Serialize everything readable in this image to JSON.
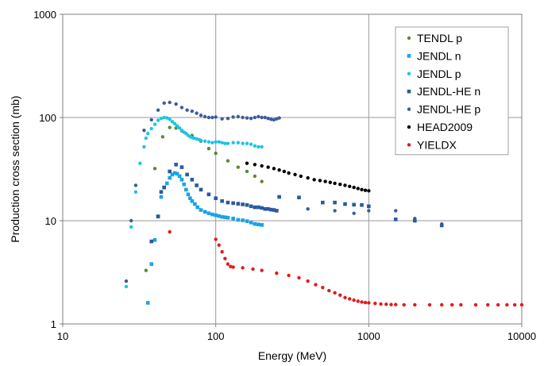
{
  "chart_data": {
    "type": "scatter",
    "xlabel": "Energy (MeV)",
    "ylabel": "Production cross section (mb)",
    "xscale": "log",
    "yscale": "log",
    "xlim": [
      10,
      10000
    ],
    "ylim": [
      1,
      1000
    ],
    "xticks": [
      "10",
      "100",
      "1000",
      "10000"
    ],
    "yticks": [
      "1",
      "10",
      "100",
      "1000"
    ],
    "grid": "major",
    "legend_position": "top-right",
    "series": [
      {
        "name": "TENDL p",
        "color": "#5b8a32",
        "marker": "dot",
        "points": [
          [
            35,
            3.3
          ],
          [
            40,
            32
          ],
          [
            45,
            65
          ],
          [
            50,
            80
          ],
          [
            55,
            79
          ],
          [
            60,
            74
          ],
          [
            70,
            67
          ],
          [
            80,
            59
          ],
          [
            90,
            50
          ],
          [
            100,
            45
          ],
          [
            120,
            38
          ],
          [
            140,
            33
          ],
          [
            160,
            30
          ],
          [
            180,
            27
          ],
          [
            200,
            24
          ]
        ]
      },
      {
        "name": "JENDL n",
        "color": "#1aa3e8",
        "marker": "square",
        "points": [
          [
            36,
            1.6
          ],
          [
            38,
            3.8
          ],
          [
            40,
            6.5
          ],
          [
            42,
            11
          ],
          [
            44,
            17
          ],
          [
            46,
            21
          ],
          [
            48,
            23
          ],
          [
            50,
            26
          ],
          [
            52,
            28
          ],
          [
            54,
            29
          ],
          [
            56,
            28.5
          ],
          [
            58,
            27
          ],
          [
            60,
            25
          ],
          [
            62,
            22.5
          ],
          [
            64,
            20
          ],
          [
            66,
            18
          ],
          [
            68,
            16.5
          ],
          [
            70,
            15.5
          ],
          [
            73,
            14.5
          ],
          [
            76,
            13.5
          ],
          [
            80,
            12.7
          ],
          [
            85,
            12.2
          ],
          [
            90,
            11.8
          ],
          [
            95,
            11.5
          ],
          [
            100,
            11.3
          ],
          [
            105,
            11.1
          ],
          [
            110,
            10.9
          ],
          [
            115,
            10.8
          ],
          [
            120,
            10.7
          ],
          [
            130,
            10.5
          ],
          [
            140,
            10.2
          ],
          [
            150,
            10.1
          ],
          [
            160,
            9.9
          ],
          [
            170,
            9.6
          ],
          [
            180,
            9.3
          ],
          [
            190,
            9.2
          ],
          [
            200,
            9.1
          ]
        ]
      },
      {
        "name": "JENDL p",
        "color": "#1cc4e6",
        "marker": "dot",
        "points": [
          [
            26,
            2.3
          ],
          [
            28,
            8.7
          ],
          [
            30,
            19
          ],
          [
            32,
            36
          ],
          [
            34,
            52
          ],
          [
            35,
            63
          ],
          [
            36,
            70
          ],
          [
            38,
            78
          ],
          [
            40,
            86
          ],
          [
            42,
            94
          ],
          [
            44,
            98
          ],
          [
            46,
            100
          ],
          [
            48,
            99
          ],
          [
            50,
            96
          ],
          [
            52,
            91
          ],
          [
            54,
            87
          ],
          [
            56,
            83
          ],
          [
            58,
            79
          ],
          [
            60,
            75
          ],
          [
            62,
            72
          ],
          [
            64,
            70
          ],
          [
            66,
            67
          ],
          [
            68,
            65
          ],
          [
            70,
            64
          ],
          [
            72,
            63
          ],
          [
            75,
            62
          ],
          [
            78,
            61
          ],
          [
            80,
            60
          ],
          [
            85,
            59
          ],
          [
            90,
            58
          ],
          [
            95,
            57
          ],
          [
            100,
            58
          ],
          [
            105,
            58
          ],
          [
            110,
            57
          ],
          [
            115,
            56
          ],
          [
            120,
            56
          ],
          [
            130,
            57
          ],
          [
            140,
            57
          ],
          [
            150,
            56
          ],
          [
            160,
            56
          ],
          [
            170,
            55
          ],
          [
            180,
            53
          ],
          [
            190,
            52
          ],
          [
            200,
            52
          ]
        ]
      },
      {
        "name": "JENDL-HE n",
        "color": "#2a5a9e",
        "marker": "square",
        "points": [
          [
            38,
            6.3
          ],
          [
            42,
            11
          ],
          [
            44,
            19
          ],
          [
            46,
            21
          ],
          [
            50,
            30
          ],
          [
            55,
            35
          ],
          [
            60,
            33
          ],
          [
            65,
            28
          ],
          [
            70,
            25
          ],
          [
            75,
            22
          ],
          [
            80,
            20
          ],
          [
            90,
            18
          ],
          [
            100,
            16.5
          ],
          [
            110,
            15.5
          ],
          [
            120,
            15
          ],
          [
            130,
            14.8
          ],
          [
            140,
            14.6
          ],
          [
            150,
            14.4
          ],
          [
            160,
            14.2
          ],
          [
            170,
            13.8
          ],
          [
            180,
            13.5
          ],
          [
            190,
            13.5
          ],
          [
            200,
            13.3
          ],
          [
            210,
            13
          ],
          [
            220,
            13
          ],
          [
            230,
            12.8
          ],
          [
            240,
            12.7
          ],
          [
            250,
            12.5
          ],
          [
            260,
            17
          ],
          [
            350,
            16.8
          ],
          [
            500,
            15
          ],
          [
            600,
            15
          ],
          [
            700,
            14.5
          ],
          [
            800,
            14.3
          ],
          [
            900,
            14.2
          ],
          [
            1000,
            13.8
          ],
          [
            1500,
            10.3
          ],
          [
            2000,
            10
          ],
          [
            3000,
            9
          ]
        ]
      },
      {
        "name": "JENDL-HE p",
        "color": "#3d5c9a",
        "marker": "dot",
        "points": [
          [
            26,
            2.6
          ],
          [
            28,
            10
          ],
          [
            30,
            22
          ],
          [
            34,
            75
          ],
          [
            38,
            95
          ],
          [
            42,
            118
          ],
          [
            46,
            138
          ],
          [
            50,
            140
          ],
          [
            55,
            135
          ],
          [
            60,
            125
          ],
          [
            65,
            118
          ],
          [
            70,
            115
          ],
          [
            75,
            110
          ],
          [
            80,
            105
          ],
          [
            85,
            102
          ],
          [
            90,
            100
          ],
          [
            95,
            100
          ],
          [
            100,
            101
          ],
          [
            110,
            97
          ],
          [
            120,
            98
          ],
          [
            130,
            101
          ],
          [
            140,
            102
          ],
          [
            150,
            100
          ],
          [
            160,
            99
          ],
          [
            170,
            98
          ],
          [
            180,
            100
          ],
          [
            190,
            102
          ],
          [
            200,
            100
          ],
          [
            210,
            100
          ],
          [
            220,
            98
          ],
          [
            230,
            96
          ],
          [
            240,
            95
          ],
          [
            250,
            97
          ],
          [
            260,
            99
          ],
          [
            400,
            13
          ],
          [
            600,
            12.5
          ],
          [
            800,
            11.8
          ],
          [
            1000,
            12.5
          ],
          [
            1500,
            12.5
          ],
          [
            2000,
            10.5
          ],
          [
            3000,
            9.3
          ]
        ]
      },
      {
        "name": "HEAD2009",
        "color": "#000000",
        "marker": "dot",
        "points": [
          [
            160,
            36
          ],
          [
            180,
            35
          ],
          [
            200,
            34
          ],
          [
            220,
            33
          ],
          [
            240,
            32
          ],
          [
            260,
            31
          ],
          [
            280,
            30
          ],
          [
            300,
            29
          ],
          [
            330,
            28
          ],
          [
            360,
            27
          ],
          [
            400,
            26
          ],
          [
            440,
            25
          ],
          [
            480,
            24.5
          ],
          [
            520,
            24
          ],
          [
            560,
            23.5
          ],
          [
            600,
            23
          ],
          [
            650,
            22.5
          ],
          [
            700,
            22
          ],
          [
            750,
            21.5
          ],
          [
            800,
            21
          ],
          [
            850,
            20.5
          ],
          [
            900,
            20
          ],
          [
            950,
            19.7
          ],
          [
            1000,
            19.5
          ]
        ]
      },
      {
        "name": "YIELDX",
        "color": "#e41a1c",
        "marker": "dot",
        "points": [
          [
            50,
            7.8
          ],
          [
            100,
            6.6
          ],
          [
            105,
            5.8
          ],
          [
            110,
            5.0
          ],
          [
            115,
            4.3
          ],
          [
            120,
            3.8
          ],
          [
            125,
            3.6
          ],
          [
            130,
            3.55
          ],
          [
            150,
            3.5
          ],
          [
            175,
            3.4
          ],
          [
            200,
            3.3
          ],
          [
            250,
            3.1
          ],
          [
            300,
            2.95
          ],
          [
            350,
            2.8
          ],
          [
            400,
            2.6
          ],
          [
            450,
            2.4
          ],
          [
            500,
            2.25
          ],
          [
            550,
            2.1
          ],
          [
            600,
            2.0
          ],
          [
            650,
            1.9
          ],
          [
            700,
            1.8
          ],
          [
            750,
            1.75
          ],
          [
            800,
            1.7
          ],
          [
            850,
            1.66
          ],
          [
            900,
            1.63
          ],
          [
            950,
            1.61
          ],
          [
            1000,
            1.6
          ],
          [
            1100,
            1.58
          ],
          [
            1200,
            1.56
          ],
          [
            1300,
            1.55
          ],
          [
            1400,
            1.54
          ],
          [
            1500,
            1.54
          ],
          [
            1700,
            1.53
          ],
          [
            2000,
            1.53
          ],
          [
            2500,
            1.53
          ],
          [
            3000,
            1.53
          ],
          [
            3500,
            1.53
          ],
          [
            4000,
            1.53
          ],
          [
            5000,
            1.53
          ],
          [
            6000,
            1.53
          ],
          [
            7000,
            1.53
          ],
          [
            8000,
            1.53
          ],
          [
            9000,
            1.53
          ],
          [
            10000,
            1.53
          ]
        ]
      }
    ]
  }
}
